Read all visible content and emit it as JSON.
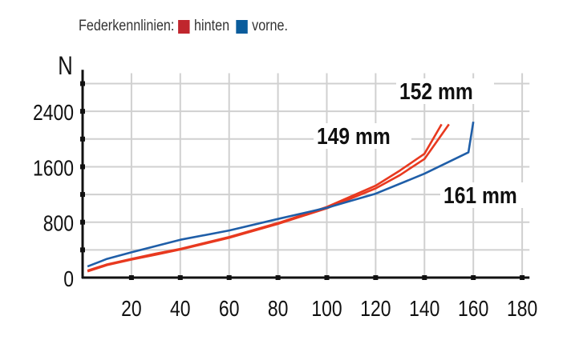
{
  "legend": {
    "title": "Federkennlinien:",
    "items": [
      {
        "label": "hinten",
        "color": "#c0262d"
      },
      {
        "label": "vorne.",
        "color": "#0a5c9c"
      }
    ]
  },
  "chart_data": {
    "type": "line",
    "ylabel": "N",
    "xlim": [
      0,
      183
    ],
    "ylim": [
      0,
      3000
    ],
    "x_ticks": [
      20,
      40,
      60,
      80,
      100,
      120,
      140,
      160,
      180
    ],
    "y_ticks": [
      0,
      800,
      1600,
      2400
    ],
    "grid": true,
    "series": [
      {
        "group": "hinten",
        "color": "#e8391f",
        "end_label": "149 mm",
        "x": [
          2,
          10,
          20,
          30,
          40,
          60,
          80,
          100,
          120,
          130,
          140,
          147
        ],
        "y": [
          100,
          190,
          270,
          346,
          415,
          585,
          788,
          1020,
          1327,
          1546,
          1788,
          2212
        ]
      },
      {
        "group": "hinten",
        "color": "#e8391f",
        "end_label": "152 mm",
        "x": [
          2,
          10,
          20,
          30,
          40,
          60,
          80,
          100,
          120,
          130,
          140,
          150
        ],
        "y": [
          90,
          180,
          260,
          330,
          405,
          575,
          775,
          1000,
          1288,
          1480,
          1712,
          2212
        ]
      },
      {
        "group": "vorne.",
        "color": "#1f5ea8",
        "end_label": "161 mm",
        "x": [
          2,
          10,
          20,
          40,
          60,
          80,
          100,
          120,
          140,
          158,
          160
        ],
        "y": [
          160,
          270,
          365,
          546,
          680,
          846,
          1008,
          1211,
          1500,
          1808,
          2250
        ]
      }
    ]
  }
}
